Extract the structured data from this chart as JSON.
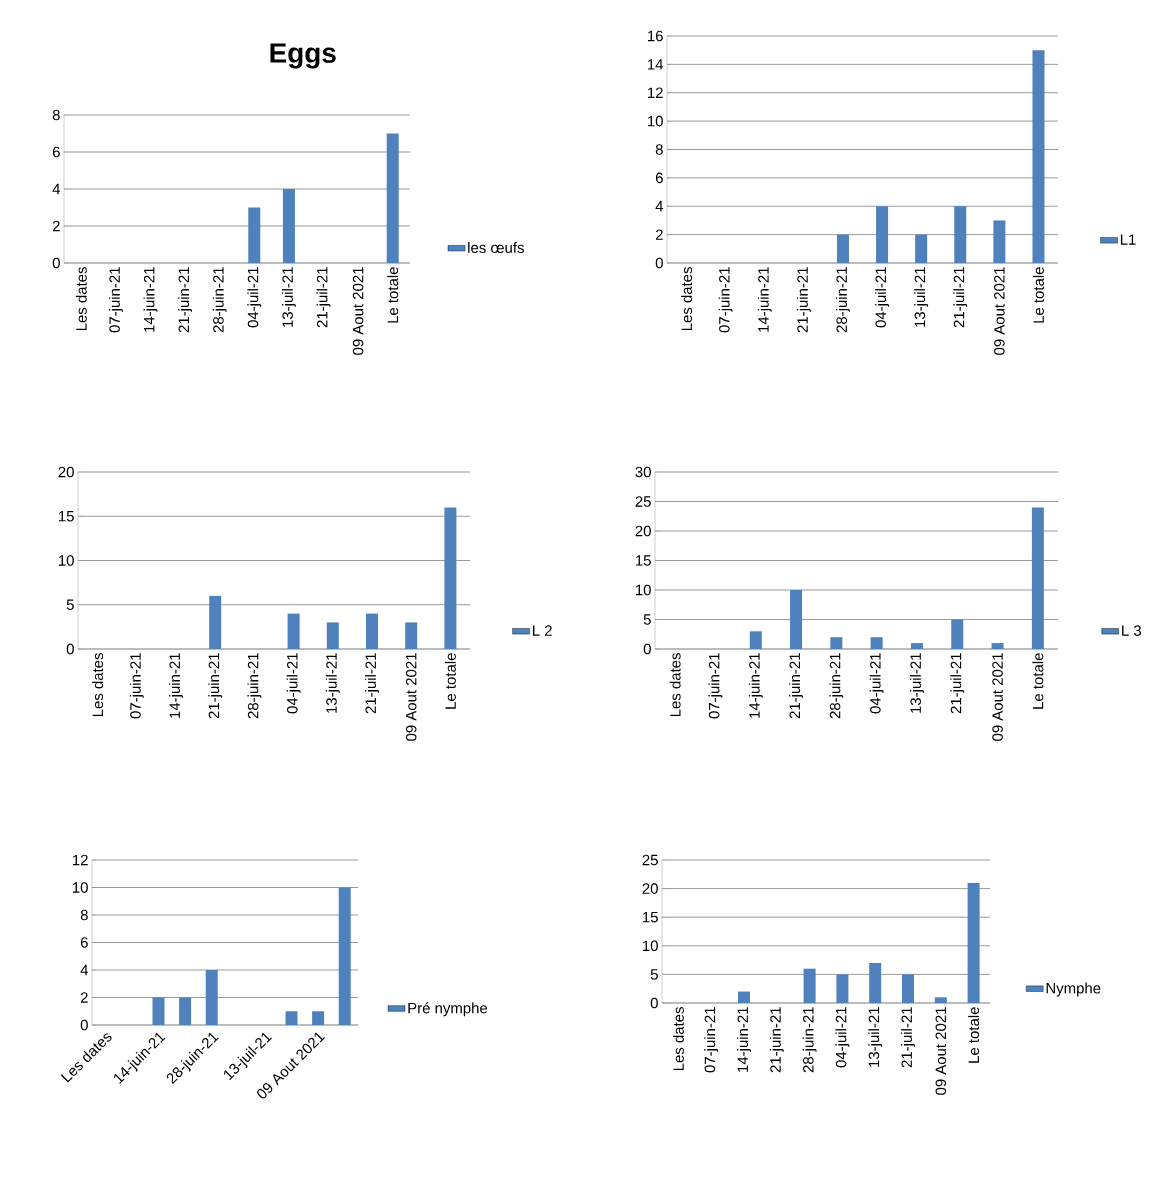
{
  "chart_data": [
    {
      "type": "bar",
      "title": "Eggs",
      "categories": [
        "Les dates",
        "07-juin-21",
        "14-juin-21",
        "21-juin-21",
        "28-juin-21",
        "04-juil-21",
        "13-juil-21",
        "21-juil-21",
        "09 Aout 2021",
        "Le totale"
      ],
      "series": [
        {
          "name": "les œufs",
          "color": "#4f81bd",
          "values": [
            0,
            0,
            0,
            0,
            0,
            3,
            4,
            0,
            0,
            7
          ]
        }
      ],
      "ylim": [
        0,
        8
      ],
      "yticks": [
        0,
        2,
        4,
        6,
        8
      ],
      "grid": "y",
      "legend": "right"
    },
    {
      "type": "bar",
      "categories": [
        "Les dates",
        "07-juin-21",
        "14-juin-21",
        "21-juin-21",
        "28-juin-21",
        "04-juil-21",
        "13-juil-21",
        "21-juil-21",
        "09 Aout 2021",
        "Le totale"
      ],
      "series": [
        {
          "name": "L1",
          "color": "#4f81bd",
          "values": [
            0,
            0,
            0,
            0,
            2,
            4,
            2,
            4,
            3,
            15
          ]
        }
      ],
      "ylim": [
        0,
        16
      ],
      "yticks": [
        0,
        2,
        4,
        6,
        8,
        10,
        12,
        14,
        16
      ],
      "grid": "y",
      "legend": "right"
    },
    {
      "type": "bar",
      "categories": [
        "Les dates",
        "07-juin-21",
        "14-juin-21",
        "21-juin-21",
        "28-juin-21",
        "04-juil-21",
        "13-juil-21",
        "21-juil-21",
        "09 Aout 2021",
        "Le totale"
      ],
      "series": [
        {
          "name": "L 2",
          "color": "#4f81bd",
          "values": [
            0,
            0,
            0,
            6,
            0,
            4,
            3,
            4,
            3,
            16
          ]
        }
      ],
      "ylim": [
        0,
        20
      ],
      "yticks": [
        0,
        5,
        10,
        15,
        20
      ],
      "grid": "y",
      "legend": "right"
    },
    {
      "type": "bar",
      "categories": [
        "Les dates",
        "07-juin-21",
        "14-juin-21",
        "21-juin-21",
        "28-juin-21",
        "04-juil-21",
        "13-juil-21",
        "21-juil-21",
        "09 Aout 2021",
        "Le totale"
      ],
      "series": [
        {
          "name": "L 3",
          "color": "#4f81bd",
          "values": [
            0,
            0,
            3,
            10,
            2,
            2,
            1,
            5,
            1,
            24
          ]
        }
      ],
      "ylim": [
        0,
        30
      ],
      "yticks": [
        0,
        5,
        10,
        15,
        20,
        25,
        30
      ],
      "grid": "y",
      "legend": "right"
    },
    {
      "type": "bar",
      "categories": [
        "Les dates",
        null,
        "14-juin-21",
        null,
        "28-juin-21",
        null,
        "13-juil-21",
        null,
        "09 Aout 2021",
        null
      ],
      "series": [
        {
          "name": "Pré nymphe",
          "color": "#4f81bd",
          "values": [
            0,
            0,
            2,
            2,
            4,
            0,
            0,
            1,
            1,
            10
          ]
        }
      ],
      "ylim": [
        0,
        12
      ],
      "yticks": [
        0,
        2,
        4,
        6,
        8,
        10,
        12
      ],
      "grid": "y",
      "legend": "right"
    },
    {
      "type": "bar",
      "categories": [
        "Les dates",
        "07-juin-21",
        "14-juin-21",
        "21-juin-21",
        "28-juin-21",
        "04-juil-21",
        "13-juil-21",
        "21-juil-21",
        "09 Aout 2021",
        "Le totale"
      ],
      "series": [
        {
          "name": "Nymphe",
          "color": "#4f81bd",
          "values": [
            0,
            0,
            2,
            0,
            6,
            5,
            7,
            5,
            1,
            21
          ]
        }
      ],
      "ylim": [
        0,
        25
      ],
      "yticks": [
        0,
        5,
        10,
        15,
        20,
        25
      ],
      "grid": "y",
      "legend": "right"
    }
  ]
}
